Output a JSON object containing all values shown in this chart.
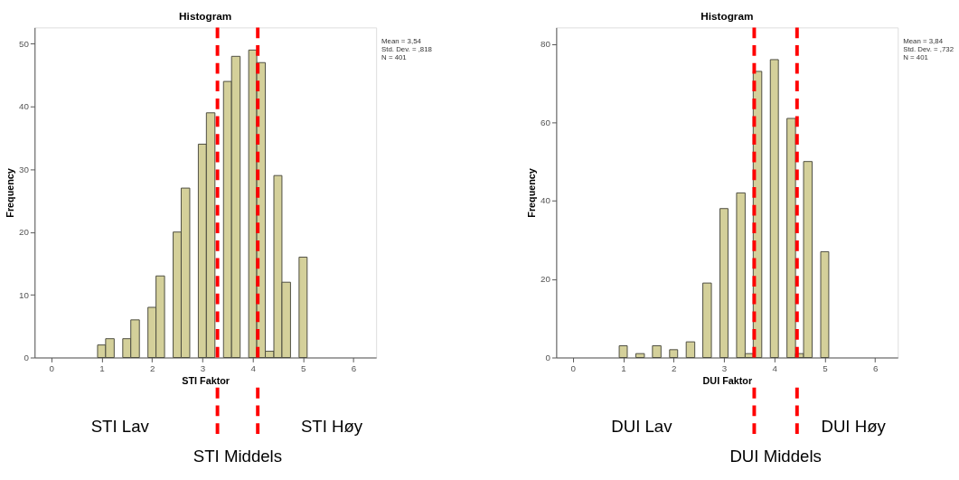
{
  "chart_data": [
    {
      "type": "histogram",
      "title": "Histogram",
      "xlabel": "STI Faktor",
      "ylabel": "Frequency",
      "bins": [
        0.92,
        1.08,
        1.25,
        1.42,
        1.58,
        1.75,
        1.92,
        2.08,
        2.25,
        2.42,
        2.58,
        2.75,
        2.92,
        3.08,
        3.25,
        3.42,
        3.58,
        3.75,
        3.92,
        4.08,
        4.25,
        4.42,
        4.58,
        4.75,
        4.92,
        5.08
      ],
      "values": [
        2,
        3,
        0,
        3,
        6,
        0,
        8,
        13,
        0,
        20,
        27,
        0,
        34,
        39,
        0,
        44,
        48,
        0,
        49,
        47,
        1,
        29,
        12,
        0,
        16
      ],
      "color": "#d4d09a",
      "xlim": [
        -0.33,
        6.45
      ],
      "xticks": [
        0,
        1,
        2,
        3,
        4,
        5,
        6
      ],
      "ylim": [
        0,
        52.6
      ],
      "yticks": [
        0,
        10,
        20,
        30,
        40,
        50
      ],
      "grid": false,
      "ref_lines": [
        {
          "axis": "x",
          "value": 3.3,
          "color": "#ff0000",
          "line_style": "dashed"
        },
        {
          "axis": "x",
          "value": 4.1,
          "color": "#ff0000",
          "line_style": "dashed"
        }
      ],
      "annotations": [
        "Mean = 3,54",
        "Std. Dev. = ,818",
        "N = 401",
        "STI Lav",
        "STI Middels",
        "STI Høy"
      ]
    },
    {
      "type": "histogram",
      "title": "Histogram",
      "xlabel": "DUI Faktor",
      "ylabel": "Frequency",
      "bins": [
        0.92,
        1.08,
        1.25,
        1.42,
        1.58,
        1.75,
        1.92,
        2.08,
        2.25,
        2.42,
        2.58,
        2.75,
        2.92,
        3.08,
        3.25,
        3.42,
        3.58,
        3.75,
        3.92,
        4.08,
        4.25,
        4.42,
        4.58,
        4.75,
        4.92,
        5.08
      ],
      "values": [
        3,
        0,
        1,
        0,
        3,
        0,
        2,
        0,
        4,
        0,
        19,
        0,
        38,
        0,
        42,
        1,
        73,
        0,
        76,
        0,
        61,
        1,
        50,
        0,
        27
      ],
      "color": "#d4d09a",
      "xlim": [
        -0.33,
        6.45
      ],
      "xticks": [
        0,
        1,
        2,
        3,
        4,
        5,
        6
      ],
      "ylim": [
        0,
        84.2
      ],
      "yticks": [
        0,
        20,
        40,
        60,
        80
      ],
      "grid": false,
      "ref_lines": [
        {
          "axis": "x",
          "value": 3.6,
          "color": "#ff0000",
          "line_style": "dashed"
        },
        {
          "axis": "x",
          "value": 4.45,
          "color": "#ff0000",
          "line_style": "dashed"
        }
      ],
      "annotations": [
        "Mean = 3,84",
        "Std. Dev. = ,732",
        "N = 401",
        "DUI Lav",
        "DUI Middels",
        "DUI Høy"
      ]
    }
  ]
}
